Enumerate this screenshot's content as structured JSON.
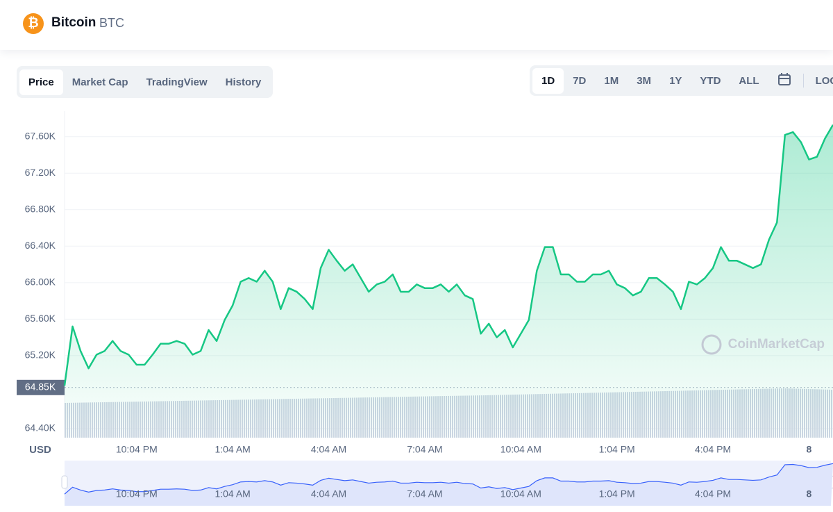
{
  "header": {
    "name": "Bitcoin",
    "symbol": "BTC"
  },
  "tabs": [
    "Price",
    "Market Cap",
    "TradingView",
    "History"
  ],
  "ranges": [
    "1D",
    "7D",
    "1M",
    "3M",
    "1Y",
    "YTD",
    "ALL"
  ],
  "log_button": "LOG",
  "watermark": "CoinMarketCap",
  "chart_data": {
    "type": "area",
    "y_label": "USD",
    "color": "#16c784",
    "categories": [
      null,
      null,
      null,
      null,
      null,
      null,
      null,
      null,
      null,
      "10:04 PM",
      null,
      null,
      null,
      null,
      null,
      null,
      null,
      null,
      null,
      null,
      null,
      "1:04 AM",
      null,
      null,
      null,
      null,
      null,
      null,
      null,
      null,
      null,
      null,
      null,
      "4:04 AM",
      null,
      null,
      null,
      null,
      null,
      null,
      null,
      null,
      null,
      null,
      null,
      "7:04 AM",
      null,
      null,
      null,
      null,
      null,
      null,
      null,
      null,
      null,
      null,
      null,
      "10:04 AM",
      null,
      null,
      null,
      null,
      null,
      null,
      null,
      null,
      null,
      null,
      null,
      "1:04 PM",
      null,
      null,
      null,
      null,
      null,
      null,
      null,
      null,
      null,
      null,
      null,
      "4:04 PM",
      null,
      null,
      null,
      null,
      null,
      null,
      null,
      null,
      null,
      null,
      null,
      "8",
      null,
      null,
      null
    ],
    "values": [
      64870,
      65520,
      65250,
      65060,
      65210,
      65250,
      65360,
      65250,
      65210,
      65100,
      65100,
      65210,
      65330,
      65330,
      65360,
      65330,
      65210,
      65250,
      65480,
      65360,
      65590,
      65750,
      66010,
      66050,
      66010,
      66130,
      66010,
      65710,
      65940,
      65900,
      65820,
      65710,
      66160,
      66360,
      66240,
      66130,
      66200,
      66050,
      65900,
      65980,
      66010,
      66090,
      65900,
      65900,
      65980,
      65940,
      65940,
      65980,
      65900,
      65980,
      65860,
      65820,
      65440,
      65550,
      65400,
      65480,
      65290,
      65440,
      65590,
      66130,
      66390,
      66390,
      66090,
      66090,
      66010,
      66010,
      66090,
      66090,
      66130,
      65980,
      65940,
      65860,
      65900,
      66050,
      66050,
      65980,
      65900,
      65710,
      66010,
      65980,
      66050,
      66160,
      66390,
      66240,
      66240,
      66200,
      66160,
      66200,
      66470,
      66660,
      67620,
      67650,
      67540,
      67350,
      67380,
      67580,
      67730
    ],
    "reference": {
      "value": 64850,
      "label": "64.85K"
    },
    "ylim": [
      64300,
      67880
    ],
    "yticks": [
      {
        "value": 64400,
        "label": "64.40K"
      },
      {
        "value": 65200,
        "label": "65.20K"
      },
      {
        "value": 65600,
        "label": "65.60K"
      },
      {
        "value": 66000,
        "label": "66.00K"
      },
      {
        "value": 66400,
        "label": "66.40K"
      },
      {
        "value": 66800,
        "label": "66.80K"
      },
      {
        "value": 67200,
        "label": "67.20K"
      },
      {
        "value": 67600,
        "label": "67.60K"
      }
    ],
    "grid": true
  }
}
